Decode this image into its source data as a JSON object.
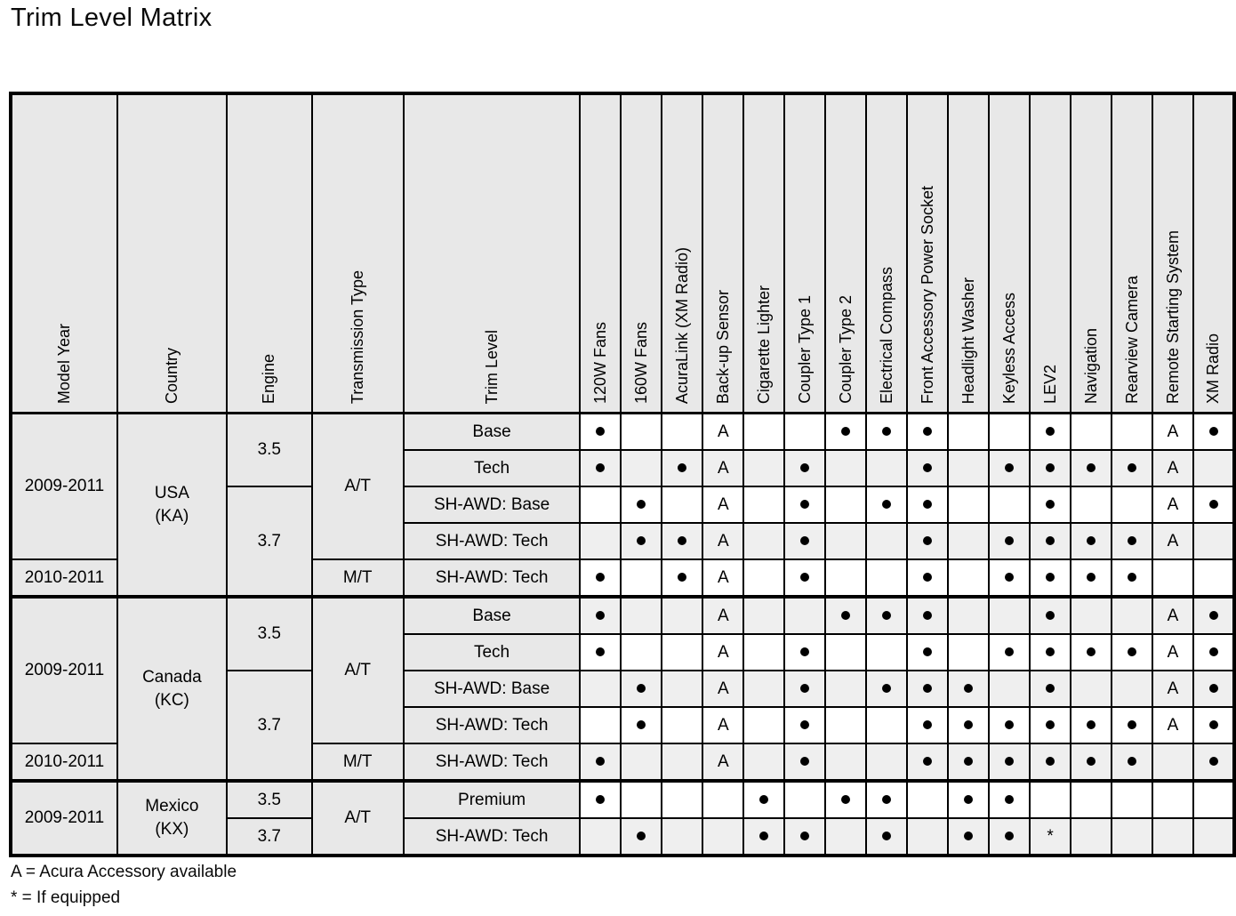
{
  "page": {
    "title": "Trim Level Matrix"
  },
  "legend": {
    "accessory": "A = Acura Accessory available",
    "if_equipped": "* = If equipped"
  },
  "colors": {
    "header_fill": "#e8e8e8",
    "zebra_fill": "#efefef",
    "border": "#000000",
    "background": "#ffffff"
  },
  "table": {
    "left_headers": [
      "Model Year",
      "Country",
      "Engine",
      "Transmission Type",
      "Trim Level"
    ],
    "feature_headers": [
      "120W Fans",
      "160W Fans",
      "AcuraLink (XM Radio)",
      "Back-up Sensor",
      "Cigarette Lighter",
      "Coupler Type 1",
      "Coupler Type 2",
      "Electrical Compass",
      "Front Accessory Power Socket",
      "Headlight Washer",
      "Keyless Access",
      "LEV2",
      "Navigation",
      "Rearview Camera",
      "Remote Starting System",
      "XM Radio"
    ],
    "marker_legend": {
      "dot": "•",
      "accessory": "A",
      "if_equipped": "*"
    },
    "rows": [
      {
        "section_start": false,
        "left_cells": [
          {
            "key": "model-year",
            "text": "2009-2011",
            "rowspan": 4
          },
          {
            "key": "country",
            "text": "USA\n(KA)",
            "rowspan": 5
          },
          {
            "key": "engine",
            "text": "3.5",
            "rowspan": 2
          },
          {
            "key": "transmission",
            "text": "A/T",
            "rowspan": 4
          },
          {
            "key": "trim",
            "text": "Base",
            "rowspan": 1
          }
        ],
        "features": [
          "•",
          "",
          "",
          "A",
          "",
          "",
          "•",
          "•",
          "•",
          "",
          "",
          "•",
          "",
          "",
          "A",
          "•"
        ]
      },
      {
        "section_start": false,
        "left_cells": [
          {
            "key": "trim",
            "text": "Tech",
            "rowspan": 1
          }
        ],
        "features": [
          "•",
          "",
          "•",
          "A",
          "",
          "•",
          "",
          "",
          "•",
          "",
          "•",
          "•",
          "•",
          "•",
          "A",
          ""
        ]
      },
      {
        "section_start": false,
        "left_cells": [
          {
            "key": "engine",
            "text": "3.7",
            "rowspan": 3
          },
          {
            "key": "trim",
            "text": "SH-AWD: Base",
            "rowspan": 1
          }
        ],
        "features": [
          "",
          "•",
          "",
          "A",
          "",
          "•",
          "",
          "•",
          "•",
          "",
          "",
          "•",
          "",
          "",
          "A",
          "•"
        ]
      },
      {
        "section_start": false,
        "left_cells": [
          {
            "key": "trim",
            "text": "SH-AWD: Tech",
            "rowspan": 1
          }
        ],
        "features": [
          "",
          "•",
          "•",
          "A",
          "",
          "•",
          "",
          "",
          "•",
          "",
          "•",
          "•",
          "•",
          "•",
          "A",
          ""
        ]
      },
      {
        "section_start": false,
        "left_cells": [
          {
            "key": "model-year",
            "text": "2010-2011",
            "rowspan": 1
          },
          {
            "key": "transmission",
            "text": "M/T",
            "rowspan": 1
          },
          {
            "key": "trim",
            "text": "SH-AWD: Tech",
            "rowspan": 1
          }
        ],
        "features": [
          "•",
          "",
          "•",
          "A",
          "",
          "•",
          "",
          "",
          "•",
          "",
          "•",
          "•",
          "•",
          "•",
          "",
          ""
        ]
      },
      {
        "section_start": true,
        "left_cells": [
          {
            "key": "model-year",
            "text": "2009-2011",
            "rowspan": 4
          },
          {
            "key": "country",
            "text": "Canada\n(KC)",
            "rowspan": 5
          },
          {
            "key": "engine",
            "text": "3.5",
            "rowspan": 2
          },
          {
            "key": "transmission",
            "text": "A/T",
            "rowspan": 4
          },
          {
            "key": "trim",
            "text": "Base",
            "rowspan": 1
          }
        ],
        "features": [
          "•",
          "",
          "",
          "A",
          "",
          "",
          "•",
          "•",
          "•",
          "",
          "",
          "•",
          "",
          "",
          "A",
          "•"
        ]
      },
      {
        "section_start": false,
        "left_cells": [
          {
            "key": "trim",
            "text": "Tech",
            "rowspan": 1
          }
        ],
        "features": [
          "•",
          "",
          "",
          "A",
          "",
          "•",
          "",
          "",
          "•",
          "",
          "•",
          "•",
          "•",
          "•",
          "A",
          "•"
        ]
      },
      {
        "section_start": false,
        "left_cells": [
          {
            "key": "engine",
            "text": "3.7",
            "rowspan": 3
          },
          {
            "key": "trim",
            "text": "SH-AWD: Base",
            "rowspan": 1
          }
        ],
        "features": [
          "",
          "•",
          "",
          "A",
          "",
          "•",
          "",
          "•",
          "•",
          "•",
          "",
          "•",
          "",
          "",
          "A",
          "•"
        ]
      },
      {
        "section_start": false,
        "left_cells": [
          {
            "key": "trim",
            "text": "SH-AWD: Tech",
            "rowspan": 1
          }
        ],
        "features": [
          "",
          "•",
          "",
          "A",
          "",
          "•",
          "",
          "",
          "•",
          "•",
          "•",
          "•",
          "•",
          "•",
          "A",
          "•"
        ]
      },
      {
        "section_start": false,
        "left_cells": [
          {
            "key": "model-year",
            "text": "2010-2011",
            "rowspan": 1
          },
          {
            "key": "transmission",
            "text": "M/T",
            "rowspan": 1
          },
          {
            "key": "trim",
            "text": "SH-AWD: Tech",
            "rowspan": 1
          }
        ],
        "features": [
          "•",
          "",
          "",
          "A",
          "",
          "•",
          "",
          "",
          "•",
          "•",
          "•",
          "•",
          "•",
          "•",
          "",
          "•"
        ]
      },
      {
        "section_start": true,
        "left_cells": [
          {
            "key": "model-year",
            "text": "2009-2011",
            "rowspan": 2
          },
          {
            "key": "country",
            "text": "Mexico\n(KX)",
            "rowspan": 2
          },
          {
            "key": "engine",
            "text": "3.5",
            "rowspan": 1
          },
          {
            "key": "transmission",
            "text": "A/T",
            "rowspan": 2
          },
          {
            "key": "trim",
            "text": "Premium",
            "rowspan": 1
          }
        ],
        "features": [
          "•",
          "",
          "",
          "",
          "•",
          "",
          "•",
          "•",
          "",
          "•",
          "•",
          "",
          "",
          "",
          "",
          ""
        ]
      },
      {
        "section_start": false,
        "left_cells": [
          {
            "key": "engine",
            "text": "3.7",
            "rowspan": 1
          },
          {
            "key": "trim",
            "text": "SH-AWD: Tech",
            "rowspan": 1
          }
        ],
        "features": [
          "",
          "•",
          "",
          "",
          "•",
          "•",
          "",
          "•",
          "",
          "•",
          "•",
          "*",
          "",
          "",
          "",
          ""
        ]
      }
    ]
  }
}
